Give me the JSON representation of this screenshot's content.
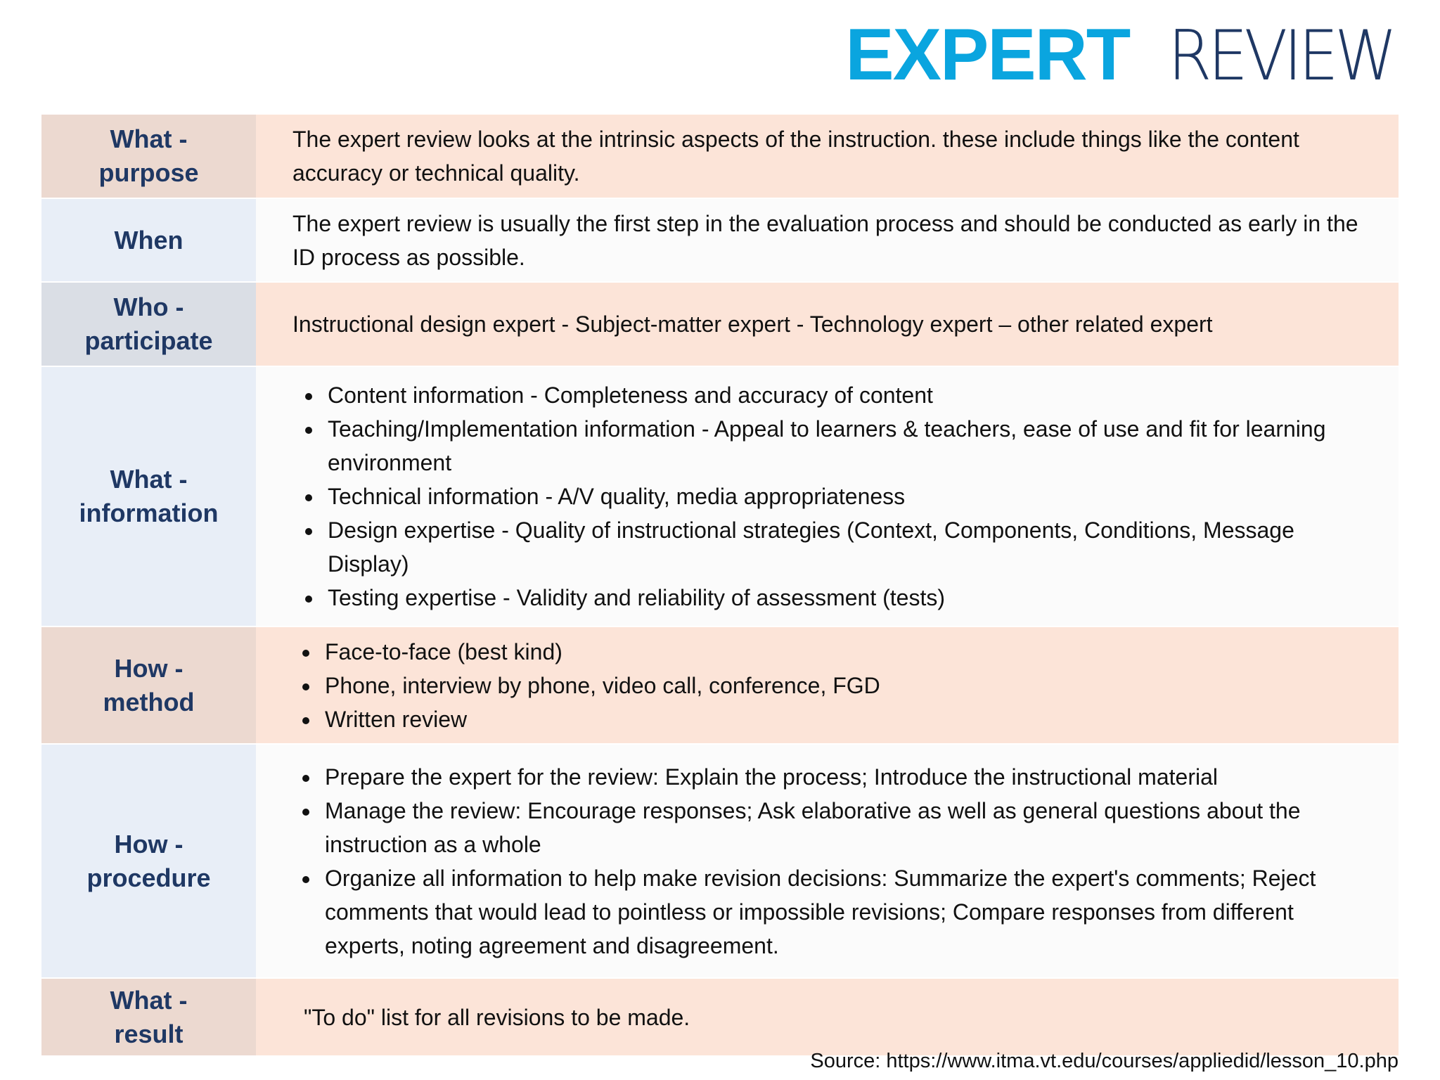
{
  "header": {
    "title_bold": "EXPERT",
    "title_light": "REVIEW"
  },
  "table": {
    "rows": [
      {
        "label": "What -\npurpose",
        "text": "The expert review looks at the intrinsic aspects of the instruction. these include things like the content accuracy or technical quality."
      },
      {
        "label": "When",
        "text": "The expert review is usually the first step in the evaluation process and should be conducted as early in the ID process as possible."
      },
      {
        "label": "Who -\nparticipate",
        "text": "Instructional design expert - Subject-matter expert - Technology expert – other related expert"
      },
      {
        "label": "What -\ninformation",
        "bullets": [
          "Content information - Completeness and accuracy of content",
          "Teaching/Implementation information - Appeal to learners & teachers, ease of use and fit for learning environment",
          "Technical information - A/V quality, media appropriateness",
          "Design expertise - Quality of instructional strategies (Context, Components, Conditions, Message Display)",
          "Testing expertise - Validity and reliability of assessment (tests)"
        ]
      },
      {
        "label": "How -\nmethod",
        "bullets": [
          "Face-to-face (best kind)",
          "Phone, interview by phone, video call, conference, FGD",
          "Written review"
        ]
      },
      {
        "label": "How -\nprocedure",
        "bullets": [
          "Prepare the expert for the review: Explain the process; Introduce the instructional material",
          "Manage the review: Encourage responses; Ask elaborative as well as general questions about the instruction as a whole",
          "Organize all information to help make revision decisions: Summarize the expert's comments; Reject comments that would lead to pointless or impossible revisions; Compare responses from different experts, noting agreement and disagreement."
        ]
      },
      {
        "label": "What -\nresult",
        "text": "\"To do\" list for all revisions to be made."
      }
    ]
  },
  "footer": {
    "source": "Source: https://www.itma.vt.edu/courses/appliedid/lesson_10.php"
  }
}
